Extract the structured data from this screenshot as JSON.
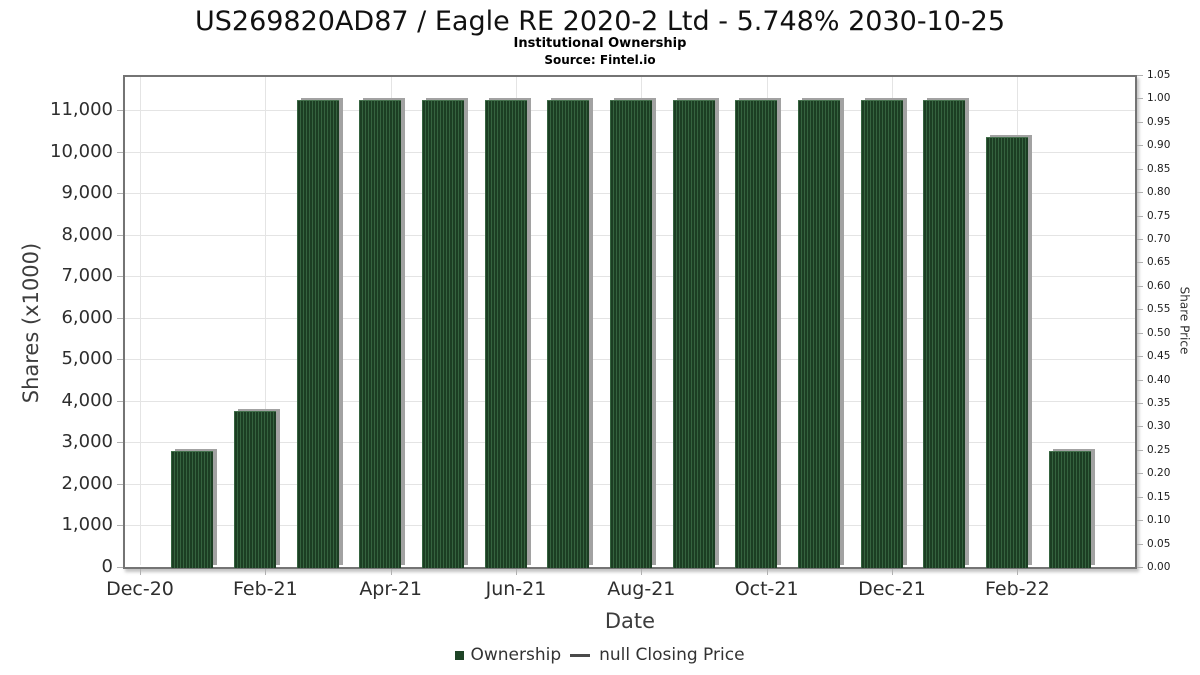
{
  "chart_data": {
    "type": "bar",
    "title": "US269820AD87 / Eagle RE 2020-2 Ltd - 5.748% 2030-10-25",
    "subtitle": "Institutional Ownership",
    "source": "Source: Fintel.io",
    "xlabel": "Date",
    "ylabel": "Shares (x1000)",
    "y2label": "Share Price",
    "series_name": "Ownership",
    "categories": [
      "Jan-21",
      "Feb-21",
      "Mar-21",
      "Apr-21",
      "May-21",
      "Jun-21",
      "Jul-21",
      "Aug-21",
      "Sep-21",
      "Oct-21",
      "Nov-21",
      "Dec-21",
      "Jan-22",
      "Feb-22",
      "Mar-22"
    ],
    "values": [
      2800,
      3750,
      11250,
      11250,
      11250,
      11250,
      11250,
      11250,
      11250,
      11250,
      11250,
      11250,
      11250,
      10350,
      2800
    ],
    "x_tick_labels": [
      "Dec-20",
      "Feb-21",
      "Apr-21",
      "Jun-21",
      "Aug-21",
      "Oct-21",
      "Dec-21",
      "Feb-22"
    ],
    "y_tick_labels": [
      "0",
      "1,000",
      "2,000",
      "3,000",
      "4,000",
      "5,000",
      "6,000",
      "7,000",
      "8,000",
      "9,000",
      "10,000",
      "11,000"
    ],
    "y2_tick_labels": [
      "0.00",
      "0.05",
      "0.10",
      "0.15",
      "0.20",
      "0.25",
      "0.30",
      "0.35",
      "0.40",
      "0.45",
      "0.50",
      "0.55",
      "0.60",
      "0.65",
      "0.70",
      "0.75",
      "0.80",
      "0.85",
      "0.90",
      "0.95",
      "1.00",
      "1.05"
    ],
    "ylim": [
      0,
      11900
    ],
    "y2lim": [
      0,
      1.05
    ],
    "grid": true,
    "legend_position": "bottom",
    "legend": [
      {
        "label": "Ownership",
        "marker": "square-icon",
        "color": "#1e4426"
      },
      {
        "label": "null Closing Price",
        "marker": "line-icon",
        "color": "#4a4a4a"
      }
    ]
  },
  "colors": {
    "bar_dark": "#1c3e23",
    "bar_light": "#35633f",
    "bar_shadow": "#a2a2a2",
    "legend_swatch": "#1e4426",
    "gridline": "#e4e4e4",
    "plot_border": "#747474",
    "tick": "#b0b0b0",
    "tick_text": "#2e2e2e",
    "axis_label_text": "#3d3d3d",
    "title_text": "#111111"
  }
}
